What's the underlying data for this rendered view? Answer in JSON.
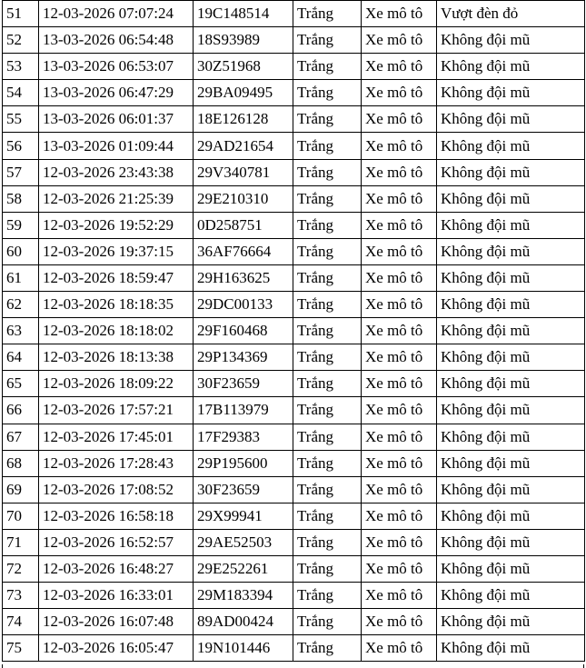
{
  "table": {
    "rows": [
      [
        "51",
        "12-03-2026 07:07:24",
        "19C148514",
        "Trắng",
        "Xe mô tô",
        "Vượt đèn đỏ"
      ],
      [
        "52",
        "13-03-2026 06:54:48",
        "18S93989",
        "Trắng",
        "Xe mô tô",
        "Không đội mũ"
      ],
      [
        "53",
        "13-03-2026 06:53:07",
        "30Z51968",
        "Trắng",
        "Xe mô tô",
        "Không đội mũ"
      ],
      [
        "54",
        "13-03-2026 06:47:29",
        "29BA09495",
        "Trắng",
        "Xe mô tô",
        "Không đội mũ"
      ],
      [
        "55",
        "13-03-2026 06:01:37",
        "18E126128",
        "Trắng",
        "Xe mô tô",
        "Không đội mũ"
      ],
      [
        "56",
        "13-03-2026 01:09:44",
        "29AD21654",
        "Trắng",
        "Xe mô tô",
        "Không đội mũ"
      ],
      [
        "57",
        "12-03-2026 23:43:38",
        "29V340781",
        "Trắng",
        "Xe mô tô",
        "Không đội mũ"
      ],
      [
        "58",
        "12-03-2026 21:25:39",
        "29E210310",
        "Trắng",
        "Xe mô tô",
        "Không đội mũ"
      ],
      [
        "59",
        "12-03-2026 19:52:29",
        "0D258751",
        "Trắng",
        "Xe mô tô",
        "Không đội mũ"
      ],
      [
        "60",
        "12-03-2026 19:37:15",
        "36AF76664",
        "Trắng",
        "Xe mô tô",
        "Không đội mũ"
      ],
      [
        "61",
        "12-03-2026 18:59:47",
        "29H163625",
        "Trắng",
        "Xe mô tô",
        "Không đội mũ"
      ],
      [
        "62",
        "12-03-2026 18:18:35",
        "29DC00133",
        "Trắng",
        "Xe mô tô",
        "Không đội mũ"
      ],
      [
        "63",
        "12-03-2026 18:18:02",
        "29F160468",
        "Trắng",
        "Xe mô tô",
        "Không đội mũ"
      ],
      [
        "64",
        "12-03-2026 18:13:38",
        "29P134369",
        "Trắng",
        "Xe mô tô",
        "Không đội mũ"
      ],
      [
        "65",
        "12-03-2026 18:09:22",
        "30F23659",
        "Trắng",
        "Xe mô tô",
        "Không đội mũ"
      ],
      [
        "66",
        "12-03-2026 17:57:21",
        "17B113979",
        "Trắng",
        "Xe mô tô",
        "Không đội mũ"
      ],
      [
        "67",
        "12-03-2026 17:45:01",
        "17F29383",
        "Trắng",
        "Xe mô tô",
        "Không đội mũ"
      ],
      [
        "68",
        "12-03-2026 17:28:43",
        "29P195600",
        "Trắng",
        "Xe mô tô",
        "Không đội mũ"
      ],
      [
        "69",
        "12-03-2026 17:08:52",
        "30F23659",
        "Trắng",
        "Xe mô tô",
        "Không đội mũ"
      ],
      [
        "70",
        "12-03-2026 16:58:18",
        "29X99941",
        "Trắng",
        "Xe mô tô",
        "Không đội mũ"
      ],
      [
        "71",
        "12-03-2026 16:52:57",
        "29AE52503",
        "Trắng",
        "Xe mô tô",
        "Không đội mũ"
      ],
      [
        "72",
        "12-03-2026 16:48:27",
        "29E252261",
        "Trắng",
        "Xe mô tô",
        "Không đội mũ"
      ],
      [
        "73",
        "12-03-2026 16:33:01",
        "29M183394",
        "Trắng",
        "Xe mô tô",
        "Không đội mũ"
      ],
      [
        "74",
        "12-03-2026 16:07:48",
        "89AD00424",
        "Trắng",
        "Xe mô tô",
        "Không đội mũ"
      ],
      [
        "75",
        "12-03-2026 16:05:47",
        "19N101446",
        "Trắng",
        "Xe mô tô",
        "Không đội mũ"
      ]
    ]
  }
}
